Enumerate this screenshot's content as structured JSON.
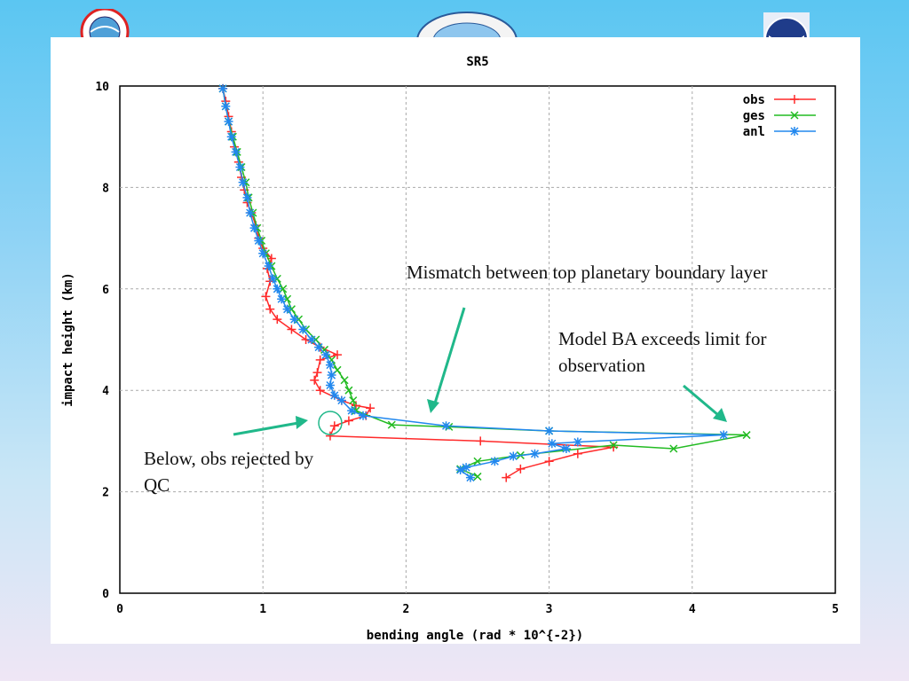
{
  "colors": {
    "obs": "#ff2a2a",
    "ges": "#22bb22",
    "anl": "#2288ee",
    "annotation_arrow": "#20b88a"
  },
  "logos": [
    "noaa-logo",
    "emblem-logo",
    "weather-logo"
  ],
  "annotations": {
    "mismatch": "Mismatch between top planetary boundary layer",
    "model_ba": "Model BA exceeds limit for observation",
    "below_rejected": "Below, obs rejected by QC"
  },
  "chart_data": {
    "type": "line",
    "title": "SR5",
    "xlabel": "bending angle (rad * 10^{-2})",
    "ylabel": "impact height (km)",
    "xlim": [
      0,
      5
    ],
    "ylim": [
      0,
      10
    ],
    "xticks": [
      0,
      1,
      2,
      3,
      4,
      5
    ],
    "yticks": [
      0,
      2,
      4,
      6,
      8,
      10
    ],
    "grid": true,
    "legend_position": "top-right",
    "series": [
      {
        "name": "obs",
        "marker": "plus",
        "points": [
          [
            0.72,
            9.95
          ],
          [
            0.74,
            9.7
          ],
          [
            0.76,
            9.4
          ],
          [
            0.78,
            9.1
          ],
          [
            0.8,
            8.8
          ],
          [
            0.83,
            8.5
          ],
          [
            0.85,
            8.2
          ],
          [
            0.87,
            7.95
          ],
          [
            0.89,
            7.7
          ],
          [
            0.92,
            7.5
          ],
          [
            0.95,
            7.25
          ],
          [
            0.97,
            7.0
          ],
          [
            1.0,
            6.8
          ],
          [
            1.06,
            6.6
          ],
          [
            1.03,
            6.4
          ],
          [
            1.05,
            6.15
          ],
          [
            1.02,
            5.85
          ],
          [
            1.05,
            5.6
          ],
          [
            1.1,
            5.4
          ],
          [
            1.2,
            5.2
          ],
          [
            1.3,
            5.0
          ],
          [
            1.4,
            4.85
          ],
          [
            1.52,
            4.7
          ],
          [
            1.4,
            4.6
          ],
          [
            1.38,
            4.35
          ],
          [
            1.36,
            4.2
          ],
          [
            1.4,
            4.0
          ],
          [
            1.55,
            3.8
          ],
          [
            1.65,
            3.7
          ],
          [
            1.75,
            3.65
          ],
          [
            1.72,
            3.5
          ],
          [
            1.6,
            3.4
          ],
          [
            1.5,
            3.3
          ],
          [
            1.47,
            3.1
          ],
          [
            2.52,
            3.0
          ],
          [
            3.45,
            2.88
          ],
          [
            3.2,
            2.75
          ],
          [
            3.0,
            2.6
          ],
          [
            2.8,
            2.45
          ],
          [
            2.7,
            2.28
          ]
        ]
      },
      {
        "name": "ges",
        "marker": "cross",
        "points": [
          [
            0.72,
            9.95
          ],
          [
            0.74,
            9.6
          ],
          [
            0.76,
            9.3
          ],
          [
            0.79,
            9.0
          ],
          [
            0.82,
            8.7
          ],
          [
            0.85,
            8.4
          ],
          [
            0.88,
            8.1
          ],
          [
            0.9,
            7.8
          ],
          [
            0.93,
            7.5
          ],
          [
            0.96,
            7.2
          ],
          [
            0.99,
            6.95
          ],
          [
            1.02,
            6.7
          ],
          [
            1.06,
            6.45
          ],
          [
            1.1,
            6.2
          ],
          [
            1.14,
            6.0
          ],
          [
            1.17,
            5.8
          ],
          [
            1.2,
            5.6
          ],
          [
            1.25,
            5.4
          ],
          [
            1.3,
            5.2
          ],
          [
            1.37,
            5.0
          ],
          [
            1.43,
            4.8
          ],
          [
            1.48,
            4.6
          ],
          [
            1.52,
            4.4
          ],
          [
            1.57,
            4.2
          ],
          [
            1.6,
            4.0
          ],
          [
            1.63,
            3.8
          ],
          [
            1.65,
            3.6
          ],
          [
            1.9,
            3.32
          ],
          [
            2.3,
            3.28
          ],
          [
            3.0,
            3.2
          ],
          [
            4.38,
            3.12
          ],
          [
            3.87,
            2.85
          ],
          [
            3.45,
            2.92
          ],
          [
            2.8,
            2.72
          ],
          [
            2.5,
            2.6
          ],
          [
            2.38,
            2.45
          ],
          [
            2.5,
            2.3
          ]
        ]
      },
      {
        "name": "anl",
        "marker": "star",
        "points": [
          [
            0.72,
            9.95
          ],
          [
            0.74,
            9.6
          ],
          [
            0.76,
            9.3
          ],
          [
            0.78,
            9.0
          ],
          [
            0.81,
            8.7
          ],
          [
            0.84,
            8.4
          ],
          [
            0.86,
            8.1
          ],
          [
            0.89,
            7.8
          ],
          [
            0.91,
            7.5
          ],
          [
            0.94,
            7.2
          ],
          [
            0.97,
            6.95
          ],
          [
            1.0,
            6.7
          ],
          [
            1.04,
            6.45
          ],
          [
            1.07,
            6.2
          ],
          [
            1.1,
            6.0
          ],
          [
            1.13,
            5.8
          ],
          [
            1.17,
            5.6
          ],
          [
            1.22,
            5.4
          ],
          [
            1.28,
            5.2
          ],
          [
            1.34,
            5.0
          ],
          [
            1.39,
            4.85
          ],
          [
            1.44,
            4.7
          ],
          [
            1.47,
            4.5
          ],
          [
            1.48,
            4.3
          ],
          [
            1.47,
            4.1
          ],
          [
            1.5,
            3.9
          ],
          [
            1.55,
            3.8
          ],
          [
            1.62,
            3.6
          ],
          [
            1.7,
            3.5
          ],
          [
            2.28,
            3.3
          ],
          [
            3.0,
            3.2
          ],
          [
            4.22,
            3.12
          ],
          [
            3.2,
            2.98
          ],
          [
            3.02,
            2.95
          ],
          [
            3.12,
            2.85
          ],
          [
            2.9,
            2.75
          ],
          [
            2.75,
            2.7
          ],
          [
            2.62,
            2.6
          ],
          [
            2.42,
            2.48
          ],
          [
            2.38,
            2.43
          ],
          [
            2.45,
            2.28
          ]
        ]
      }
    ]
  }
}
